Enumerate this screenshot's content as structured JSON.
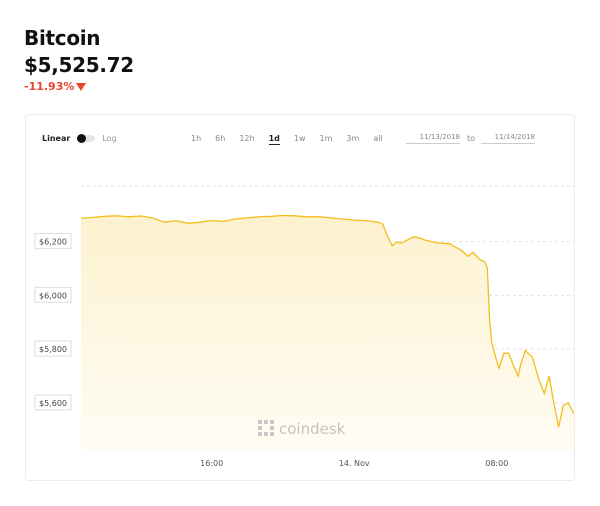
{
  "coin": {
    "name": "Bitcoin",
    "price": "$5,525.72",
    "change": "-11.93%"
  },
  "controls": {
    "linear_label": "Linear",
    "log_label": "Log",
    "ranges": [
      "1h",
      "6h",
      "12h",
      "1d",
      "1w",
      "1m",
      "3m",
      "all"
    ],
    "active_range": "1d",
    "date_from": "11/13/2018",
    "to_label": "to",
    "date_to": "11/14/2018"
  },
  "watermark": "coindesk",
  "colors": {
    "line": "#f2bd1c",
    "area_top": "#fdf2cf",
    "area_bottom": "#fffcf4",
    "negative": "#e8452c"
  },
  "chart_data": {
    "type": "area",
    "title": "",
    "xlabel": "",
    "ylabel": "",
    "x_ticks": [
      {
        "label": "16:00",
        "t": 4
      },
      {
        "label": "14. Nov",
        "t": 10
      },
      {
        "label": "08:00",
        "t": 16
      }
    ],
    "x_range": [
      -1.5,
      19.25
    ],
    "y_ticks": [
      {
        "label": "$6,200",
        "value": 6200
      },
      {
        "label": "$6,000",
        "value": 6000
      },
      {
        "label": "$5,800",
        "value": 5800
      },
      {
        "label": "$5,600",
        "value": 5600
      }
    ],
    "ylim": [
      5425,
      6455
    ],
    "grid": true,
    "series": [
      {
        "t": [
          -1.5,
          -1.0,
          -0.5,
          0.0,
          0.5,
          1.0,
          1.5,
          2.0,
          2.5,
          3.0,
          3.5,
          4.0,
          4.5,
          5.0,
          5.5,
          6.0,
          6.5,
          7.0,
          7.5,
          8.0,
          8.5,
          9.0,
          9.5,
          10.0,
          10.5,
          11.0,
          11.2,
          11.4,
          11.6,
          11.8,
          12.0,
          12.5,
          12.8,
          13.0,
          13.5,
          14.0,
          14.5,
          14.8,
          15.0,
          15.3,
          15.5,
          15.6,
          15.7,
          15.8,
          16.0,
          16.1,
          16.3,
          16.5,
          16.7,
          16.9,
          17.0,
          17.2,
          17.5,
          17.8,
          18.0,
          18.2,
          18.4,
          18.6,
          18.8,
          19.0,
          19.25
        ],
        "values": [
          6286,
          6290,
          6294,
          6296,
          6292,
          6295,
          6288,
          6272,
          6278,
          6268,
          6272,
          6278,
          6275,
          6284,
          6288,
          6292,
          6294,
          6297,
          6296,
          6292,
          6293,
          6288,
          6284,
          6280,
          6278,
          6272,
          6265,
          6220,
          6185,
          6198,
          6195,
          6218,
          6212,
          6205,
          6195,
          6192,
          6168,
          6145,
          6160,
          6132,
          6125,
          6100,
          5905,
          5820,
          5755,
          5730,
          5785,
          5785,
          5740,
          5700,
          5740,
          5795,
          5770,
          5680,
          5635,
          5700,
          5600,
          5510,
          5590,
          5600,
          5560
        ]
      }
    ]
  }
}
